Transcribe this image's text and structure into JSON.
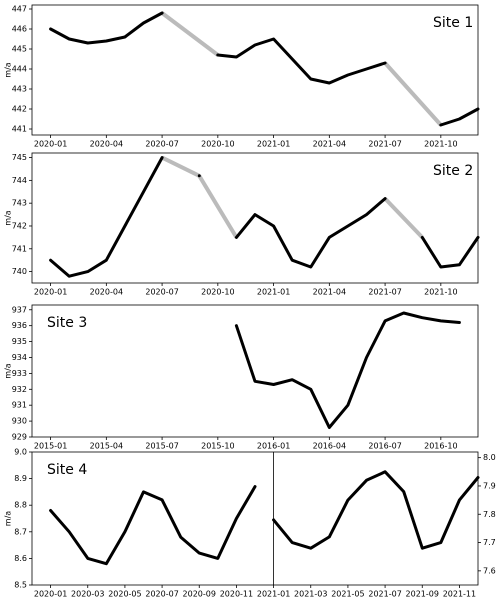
{
  "chart_data": [
    {
      "type": "line",
      "annotation": "Site 1",
      "y_label": "m/a",
      "x": [
        "2020-01",
        "2020-02",
        "2020-03",
        "2020-04",
        "2020-05",
        "2020-06",
        "2020-07",
        "2020-08",
        "2020-09",
        "2020-10",
        "2020-11",
        "2020-12",
        "2021-01",
        "2021-02",
        "2021-03",
        "2021-04",
        "2021-05",
        "2021-06",
        "2021-07",
        "2021-08",
        "2021-09",
        "2021-10",
        "2021-11",
        "2021-12"
      ],
      "series": [
        {
          "color": "#000000",
          "values": [
            446.0,
            445.5,
            445.3,
            445.4,
            445.6,
            446.3,
            446.8,
            null,
            null,
            444.7,
            444.6,
            445.2,
            445.5,
            444.5,
            443.5,
            443.3,
            443.7,
            444.0,
            444.3,
            null,
            null,
            441.2,
            441.5,
            442.0
          ]
        }
      ],
      "xlim": [
        "2019-12",
        "2021-12"
      ],
      "xticks": [
        "2020-01",
        "2020-04",
        "2020-07",
        "2020-10",
        "2021-01",
        "2021-04",
        "2021-07",
        "2021-10"
      ],
      "ylim": [
        440.7,
        447.2
      ],
      "yticks": [
        441,
        442,
        443,
        444,
        445,
        446,
        447
      ]
    },
    {
      "type": "line",
      "annotation": "Site 2",
      "y_label": "m/a",
      "x": [
        "2020-01",
        "2020-02",
        "2020-03",
        "2020-04",
        "2020-05",
        "2020-06",
        "2020-07",
        "2020-08",
        "2020-09",
        "2020-10",
        "2020-11",
        "2020-12",
        "2021-01",
        "2021-02",
        "2021-03",
        "2021-04",
        "2021-05",
        "2021-06",
        "2021-07",
        "2021-08",
        "2021-09",
        "2021-10",
        "2021-11",
        "2021-12"
      ],
      "series": [
        {
          "color": "#000000",
          "values": [
            740.5,
            739.8,
            740.0,
            740.5,
            742.0,
            743.5,
            745.0,
            null,
            744.2,
            null,
            741.5,
            742.5,
            742.0,
            740.5,
            740.2,
            741.5,
            742.0,
            742.5,
            743.2,
            null,
            741.5,
            740.2,
            740.3,
            741.5
          ]
        }
      ],
      "xlim": [
        "2019-12",
        "2021-12"
      ],
      "xticks": [
        "2020-01",
        "2020-04",
        "2020-07",
        "2020-10",
        "2021-01",
        "2021-04",
        "2021-07",
        "2021-10"
      ],
      "ylim": [
        739.5,
        745.2
      ],
      "yticks": [
        740,
        741,
        742,
        743,
        744,
        745
      ]
    },
    {
      "type": "line",
      "annotation": "Site 3",
      "y_label": "m/a",
      "x": [
        "2015-11",
        "2015-12",
        "2016-01",
        "2016-02",
        "2016-03",
        "2016-04",
        "2016-05",
        "2016-06",
        "2016-07",
        "2016-08",
        "2016-09",
        "2016-10",
        "2016-11"
      ],
      "series": [
        {
          "color": "#000000",
          "values": [
            936.0,
            932.5,
            932.3,
            932.6,
            932.0,
            929.6,
            931.0,
            934.0,
            936.3,
            936.8,
            936.5,
            936.3,
            936.2
          ]
        }
      ],
      "xlim": [
        "2014-12",
        "2016-12"
      ],
      "xticks": [
        "2015-01",
        "2015-04",
        "2015-07",
        "2015-10",
        "2016-01",
        "2016-04",
        "2016-07",
        "2016-10"
      ],
      "ylim": [
        929,
        937.3
      ],
      "yticks": [
        929,
        930,
        931,
        932,
        933,
        934,
        935,
        936,
        937
      ]
    },
    {
      "type": "line",
      "annotation": "Site 4",
      "y_label": "m/a",
      "x": [
        "2020-01",
        "2020-02",
        "2020-03",
        "2020-04",
        "2020-05",
        "2020-06",
        "2020-07",
        "2020-08",
        "2020-09",
        "2020-10",
        "2020-11",
        "2020-12",
        "2021-01",
        "2021-02",
        "2021-03",
        "2021-04",
        "2021-05",
        "2021-06",
        "2021-07",
        "2021-08",
        "2021-09",
        "2021-10",
        "2021-11",
        "2021-12"
      ],
      "series": [
        {
          "color": "#000000",
          "values": [
            8.78,
            8.7,
            8.6,
            8.58,
            8.7,
            8.85,
            8.82,
            8.68,
            8.62,
            8.6,
            8.75,
            8.87,
            null,
            null,
            null,
            null,
            null,
            null,
            null,
            null,
            null,
            null,
            null,
            null
          ]
        },
        {
          "color": "#000000",
          "axis": "y2",
          "values": [
            null,
            null,
            null,
            null,
            null,
            null,
            null,
            null,
            null,
            null,
            null,
            null,
            7.78,
            7.7,
            7.68,
            7.72,
            7.85,
            7.92,
            7.95,
            7.88,
            7.68,
            7.7,
            7.85,
            7.93
          ]
        }
      ],
      "xlim": [
        "2019-12",
        "2021-12"
      ],
      "xticks": [
        "2020-01",
        "2020-03",
        "2020-05",
        "2020-07",
        "2020-09",
        "2020-11",
        "2021-01",
        "2021-03",
        "2021-05",
        "2021-07",
        "2021-09",
        "2021-11"
      ],
      "ylim": [
        8.5,
        9.0
      ],
      "yticks": [
        8.5,
        8.6,
        8.7,
        8.8,
        8.9,
        {
          "value": 9,
          "label": "9.0"
        }
      ],
      "y2lim": [
        7.55,
        8.02
      ],
      "y2ticks": [
        7.6,
        7.7,
        7.8,
        7.9,
        {
          "value": 8,
          "label": "8.0"
        }
      ]
    }
  ]
}
